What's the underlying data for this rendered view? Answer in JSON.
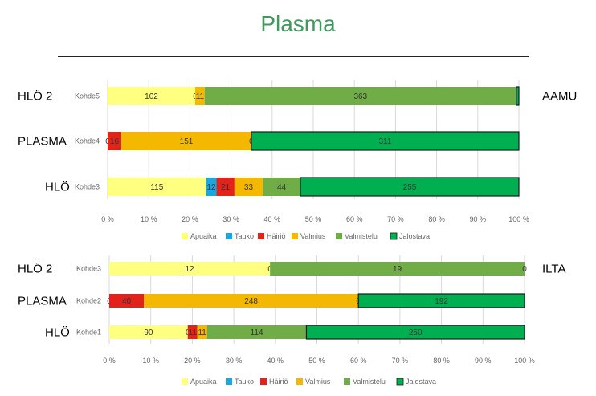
{
  "page": {
    "title": "Plasma"
  },
  "colors": {
    "Apuaika": "#ffff80",
    "Tauko": "#1aa7e0",
    "Häiriö": "#e2231a",
    "Valmius": "#f5b800",
    "Valmistelu": "#70ad47",
    "Jalostava": "#00b050"
  },
  "chart_data": [
    {
      "type": "bar",
      "orientation": "horizontal",
      "stacked": "percent",
      "categories": [
        "Kohde5",
        "Kohde4",
        "Kohde3"
      ],
      "row_labels_left": [
        "HLÖ 2",
        "PLASMA",
        "HLÖ"
      ],
      "side_label_right": "AAMU",
      "series": [
        {
          "name": "Apuaika",
          "values": [
            102,
            0,
            115
          ]
        },
        {
          "name": "Tauko",
          "values": [
            0,
            0,
            12
          ]
        },
        {
          "name": "Häiriö",
          "values": [
            0,
            16,
            21
          ]
        },
        {
          "name": "Valmius",
          "values": [
            11,
            151,
            33
          ]
        },
        {
          "name": "Valmistelu",
          "values": [
            363,
            0,
            44
          ]
        },
        {
          "name": "Jalostava",
          "values": [
            3,
            311,
            255
          ]
        }
      ],
      "value_labels": [
        [
          "102",
          "0",
          "",
          "11",
          "363",
          ""
        ],
        [
          "",
          "0",
          "16",
          "151",
          "0",
          "311"
        ],
        [
          "115",
          "12",
          "21",
          "33",
          "44",
          "255"
        ]
      ],
      "xticks": [
        "0 %",
        "10 %",
        "20 %",
        "30 %",
        "40 %",
        "50 %",
        "60 %",
        "70 %",
        "80 %",
        "90 %",
        "100 %"
      ],
      "xlim": [
        0,
        100
      ],
      "grid": true,
      "legend": "bottom"
    },
    {
      "type": "bar",
      "orientation": "horizontal",
      "stacked": "percent",
      "categories": [
        "Kohde3",
        "Kohde2",
        "Kohde1"
      ],
      "row_labels_left": [
        "HLÖ 2",
        "PLASMA",
        "HLÖ"
      ],
      "side_label_right": "ILTA",
      "series": [
        {
          "name": "Apuaika",
          "values": [
            12,
            0,
            90
          ]
        },
        {
          "name": "Tauko",
          "values": [
            0,
            0,
            0
          ]
        },
        {
          "name": "Häiriö",
          "values": [
            0,
            40,
            11
          ]
        },
        {
          "name": "Valmius",
          "values": [
            0,
            248,
            11
          ]
        },
        {
          "name": "Valmistelu",
          "values": [
            19,
            0,
            114
          ]
        },
        {
          "name": "Jalostava",
          "values": [
            0,
            192,
            250
          ]
        }
      ],
      "value_labels": [
        [
          "12",
          "",
          "",
          "0",
          "19",
          "0"
        ],
        [
          "0",
          "",
          "40",
          "248",
          "0",
          "192"
        ],
        [
          "90",
          "0",
          "11",
          "11",
          "114",
          "250"
        ]
      ],
      "xticks": [
        "0 %",
        "10 %",
        "20 %",
        "30 %",
        "40 %",
        "50 %",
        "60 %",
        "70 %",
        "80 %",
        "90 %",
        "100 %"
      ],
      "xlim": [
        0,
        100
      ],
      "grid": true,
      "legend": "bottom"
    }
  ]
}
